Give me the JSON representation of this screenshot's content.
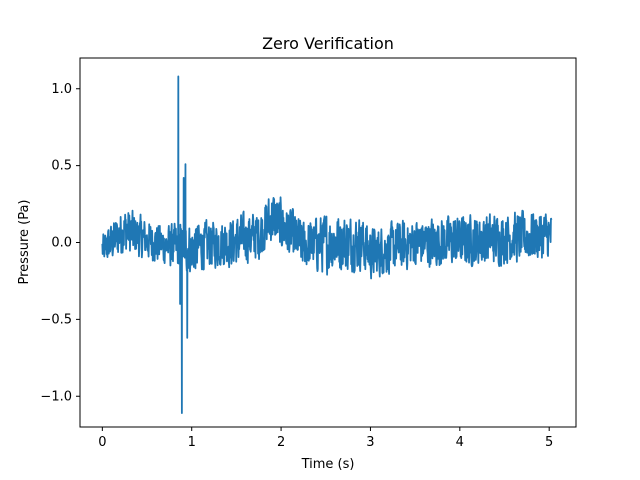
{
  "chart_data": {
    "type": "line",
    "title": "Zero Verification",
    "xlabel": "Time (s)",
    "ylabel": "Pressure (Pa)",
    "xlim": [
      -0.25,
      5.3
    ],
    "ylim": [
      -1.2,
      1.2
    ],
    "x_ticks": [
      0,
      1,
      2,
      3,
      4,
      5
    ],
    "x_tick_labels": [
      "0",
      "1",
      "2",
      "3",
      "4",
      "5"
    ],
    "y_ticks": [
      -1.0,
      -0.5,
      0.0,
      0.5,
      1.0
    ],
    "y_tick_labels": [
      "−1.0",
      "−0.5",
      "0.0",
      "0.5",
      "1.0"
    ],
    "grid": false,
    "series": [
      {
        "color": "#1f77b4",
        "x_start": 0.0,
        "x_end": 5.03,
        "noise_amplitude": 0.1,
        "envelope_points": [
          {
            "t": 0.0,
            "min": -0.18,
            "max": 0.08
          },
          {
            "t": 0.25,
            "min": -0.12,
            "max": 0.28
          },
          {
            "t": 0.5,
            "min": -0.15,
            "max": 0.18
          },
          {
            "t": 0.75,
            "min": -0.2,
            "max": 0.15
          },
          {
            "t": 1.0,
            "min": -0.25,
            "max": 0.18
          },
          {
            "t": 1.25,
            "min": -0.2,
            "max": 0.18
          },
          {
            "t": 1.5,
            "min": -0.2,
            "max": 0.22
          },
          {
            "t": 1.75,
            "min": -0.15,
            "max": 0.25
          },
          {
            "t": 1.9,
            "min": -0.05,
            "max": 0.39
          },
          {
            "t": 2.25,
            "min": -0.22,
            "max": 0.18
          },
          {
            "t": 2.5,
            "min": -0.25,
            "max": 0.25
          },
          {
            "t": 2.9,
            "min": -0.22,
            "max": 0.22
          },
          {
            "t": 3.0,
            "min": -0.28,
            "max": 0.14
          },
          {
            "t": 3.5,
            "min": -0.2,
            "max": 0.2
          },
          {
            "t": 4.0,
            "min": -0.2,
            "max": 0.22
          },
          {
            "t": 4.5,
            "min": -0.18,
            "max": 0.24
          },
          {
            "t": 5.03,
            "min": -0.15,
            "max": 0.25
          }
        ],
        "spikes": [
          {
            "x": 0.85,
            "y": 1.08
          },
          {
            "x": 0.87,
            "y": -0.4
          },
          {
            "x": 0.89,
            "y": -1.11
          },
          {
            "x": 0.91,
            "y": 0.42
          },
          {
            "x": 0.93,
            "y": 0.51
          },
          {
            "x": 0.95,
            "y": -0.62
          }
        ]
      }
    ]
  }
}
